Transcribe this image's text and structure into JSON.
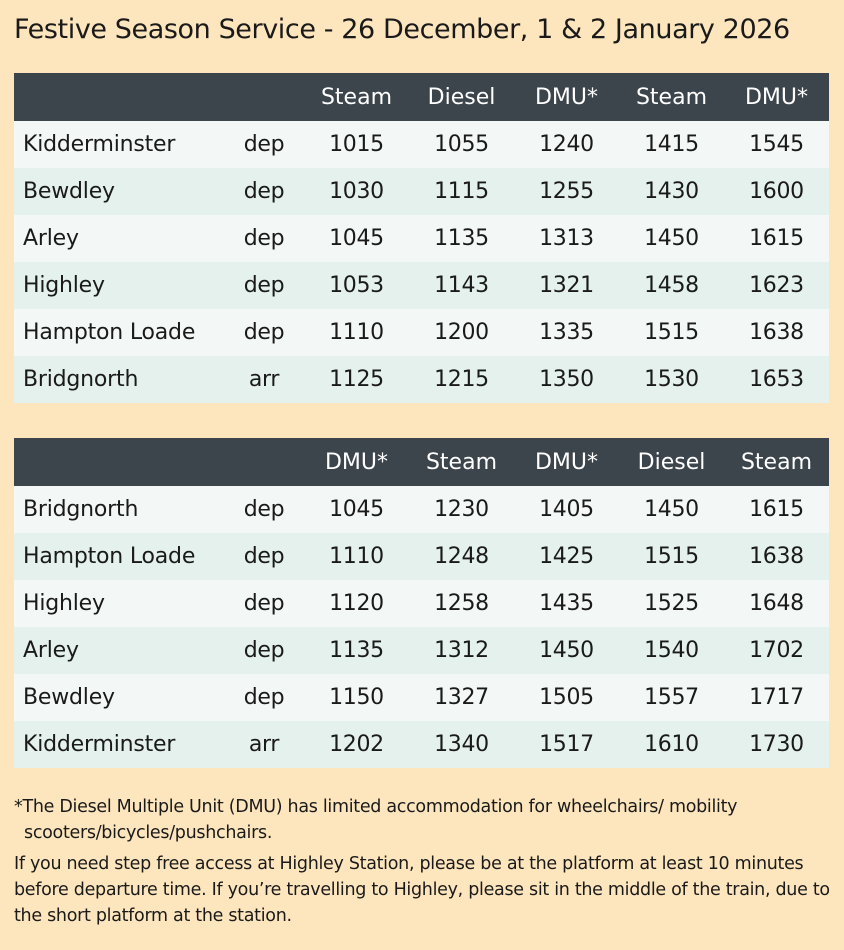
{
  "title": "Festive Season Service - 26 December, 1 & 2 January 2026",
  "timetables": [
    {
      "train_types": [
        "Steam",
        "Diesel",
        "DMU*",
        "Steam",
        "DMU*"
      ],
      "rows": [
        {
          "station": "Kidderminster",
          "da": "dep",
          "times": [
            "1015",
            "1055",
            "1240",
            "1415",
            "1545"
          ]
        },
        {
          "station": "Bewdley",
          "da": "dep",
          "times": [
            "1030",
            "1115",
            "1255",
            "1430",
            "1600"
          ]
        },
        {
          "station": "Arley",
          "da": "dep",
          "times": [
            "1045",
            "1135",
            "1313",
            "1450",
            "1615"
          ]
        },
        {
          "station": "Highley",
          "da": "dep",
          "times": [
            "1053",
            "1143",
            "1321",
            "1458",
            "1623"
          ]
        },
        {
          "station": "Hampton Loade",
          "da": "dep",
          "times": [
            "1110",
            "1200",
            "1335",
            "1515",
            "1638"
          ]
        },
        {
          "station": "Bridgnorth",
          "da": "arr",
          "times": [
            "1125",
            "1215",
            "1350",
            "1530",
            "1653"
          ]
        }
      ]
    },
    {
      "train_types": [
        "DMU*",
        "Steam",
        "DMU*",
        "Diesel",
        "Steam"
      ],
      "rows": [
        {
          "station": "Bridgnorth",
          "da": "dep",
          "times": [
            "1045",
            "1230",
            "1405",
            "1450",
            "1615"
          ]
        },
        {
          "station": "Hampton Loade",
          "da": "dep",
          "times": [
            "1110",
            "1248",
            "1425",
            "1515",
            "1638"
          ]
        },
        {
          "station": "Highley",
          "da": "dep",
          "times": [
            "1120",
            "1258",
            "1435",
            "1525",
            "1648"
          ]
        },
        {
          "station": "Arley",
          "da": "dep",
          "times": [
            "1135",
            "1312",
            "1450",
            "1540",
            "1702"
          ]
        },
        {
          "station": "Bewdley",
          "da": "dep",
          "times": [
            "1150",
            "1327",
            "1505",
            "1557",
            "1717"
          ]
        },
        {
          "station": "Kidderminster",
          "da": "arr",
          "times": [
            "1202",
            "1340",
            "1517",
            "1610",
            "1730"
          ]
        }
      ]
    }
  ],
  "notes": {
    "dmu_note": "*The Diesel Multiple Unit (DMU) has limited accommodation for wheelchairs/ mobility scooters/bicycles/pushchairs.",
    "access_note": "If you need step free access at Highley Station, please be at the platform at least 10 minutes before departure time. If you’re travelling to Highley, please sit in the middle of the train, due to the short platform at the station."
  },
  "colors": {
    "page_background": "#fde6bd",
    "header_background": "#3d454c",
    "row_light": "#f3f8f7",
    "row_tint": "#e4f1ed"
  }
}
